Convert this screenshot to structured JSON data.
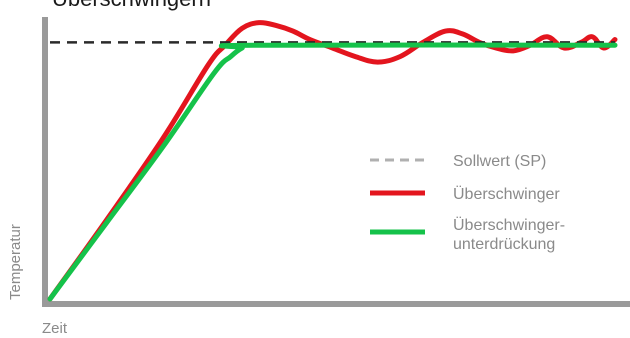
{
  "chart_data": {
    "type": "line",
    "title": "Überschwingern",
    "xlabel": "Zeit",
    "ylabel": "Temperatur",
    "grid": false,
    "legend_position": "right",
    "xlim": [
      0,
      100
    ],
    "ylim": [
      0,
      100
    ],
    "setpoint": 91,
    "series": [
      {
        "name": "Sollwert (SP)",
        "color": "#2a2a2a",
        "legend_color": "#b0b0b0",
        "style": "dashed",
        "x": [
          0,
          100
        ],
        "y": [
          91,
          91
        ]
      },
      {
        "name": "Überschwinger",
        "color": "#e3151e",
        "style": "solid",
        "x": [
          0,
          10,
          20,
          28,
          31,
          34,
          37,
          40,
          43,
          46,
          50,
          54,
          58,
          62,
          66,
          70,
          73,
          76,
          79,
          82,
          85,
          88,
          91,
          94,
          96,
          98,
          100
        ],
        "y": [
          0,
          28,
          57,
          83,
          90,
          96,
          98,
          97,
          95,
          92,
          89,
          86,
          84,
          86,
          91,
          95,
          94,
          91,
          89,
          88,
          90,
          93,
          89,
          91,
          93,
          89,
          92
        ]
      },
      {
        "name": "Überschwinger-\nunterdrückung",
        "name_lines": [
          "Überschwinger-",
          "unterdrückung"
        ],
        "color": "#15c24a",
        "style": "solid",
        "x": [
          0,
          10,
          20,
          29,
          32,
          34,
          36,
          100
        ],
        "y": [
          0,
          27,
          54,
          80,
          86,
          89,
          90,
          90
        ]
      }
    ]
  }
}
